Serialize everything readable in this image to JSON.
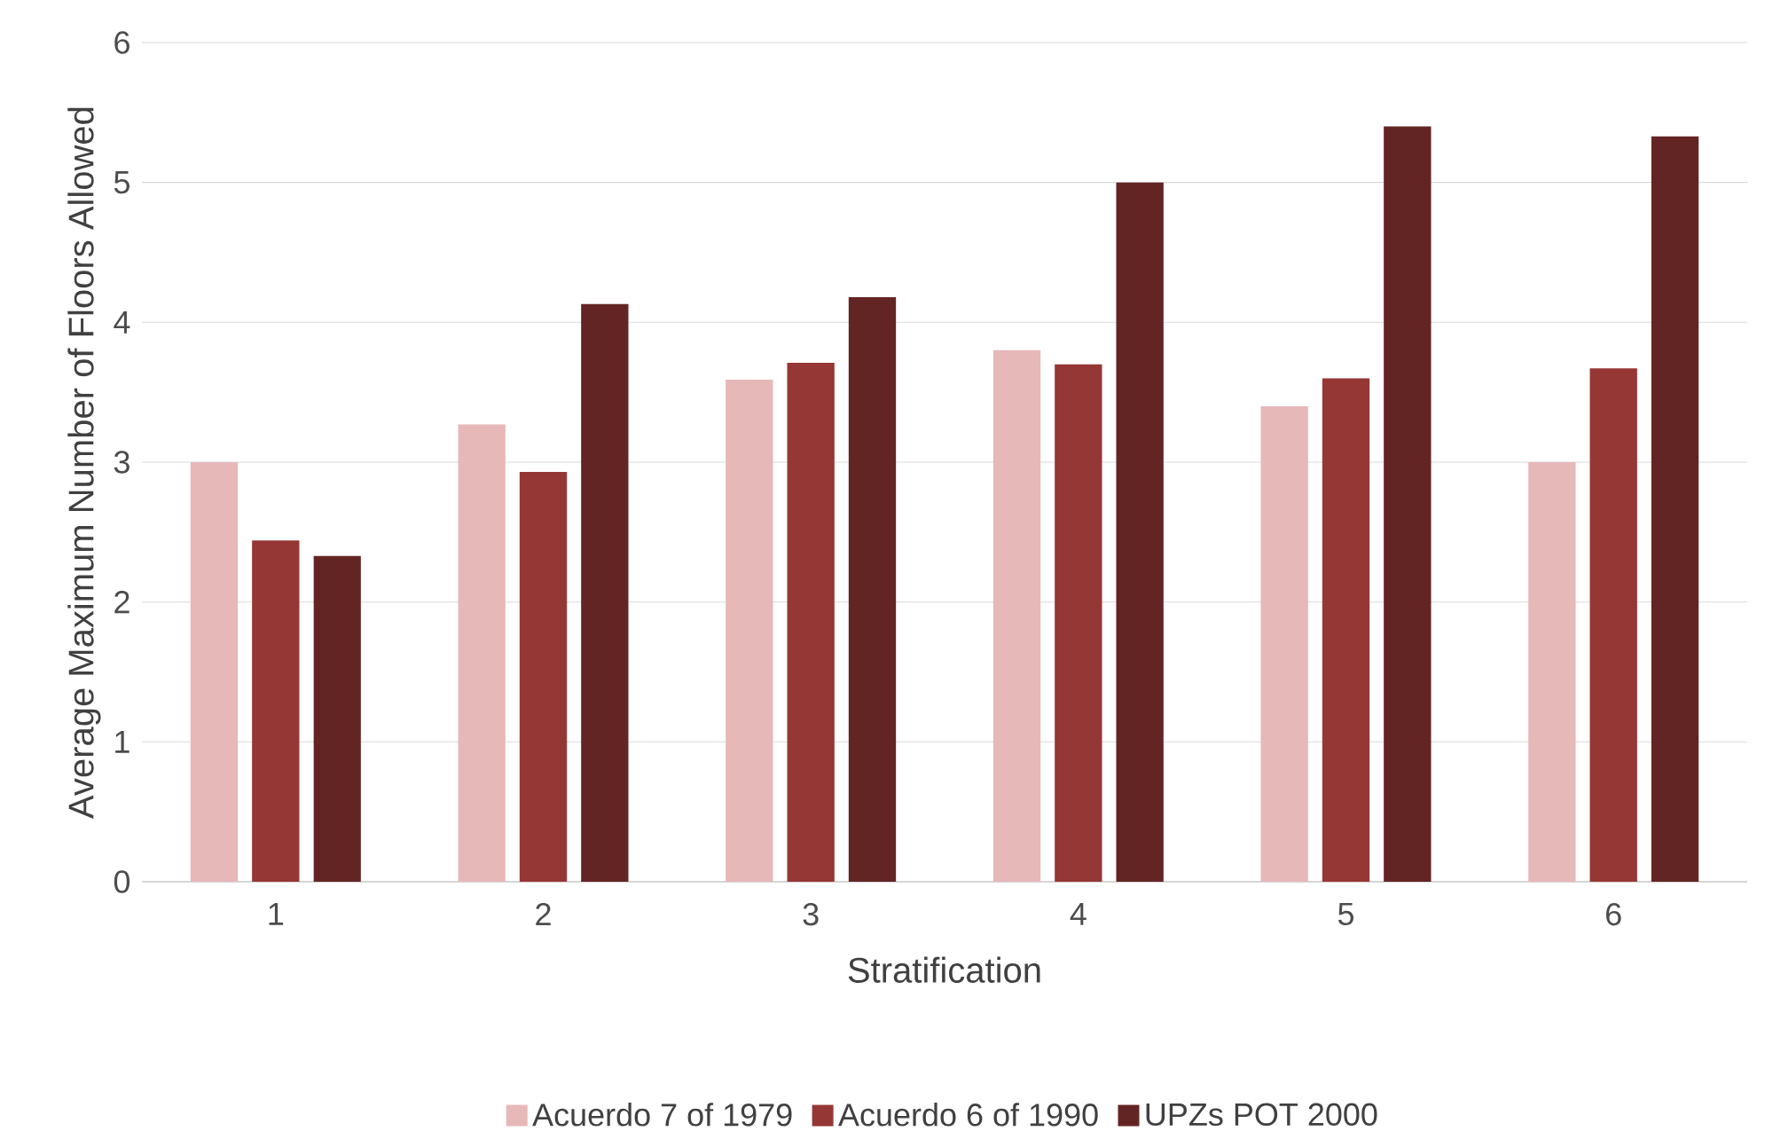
{
  "chart_data": {
    "type": "bar",
    "xlabel": "Stratification",
    "ylabel": "Average Maximum Number of Floors Allowed",
    "categories": [
      "1",
      "2",
      "3",
      "4",
      "5",
      "6"
    ],
    "series": [
      {
        "name": "Acuerdo 7 of 1979",
        "color": "#e6b8b7",
        "values": [
          3.0,
          3.27,
          3.59,
          3.8,
          3.4,
          3.0
        ]
      },
      {
        "name": "Acuerdo 6 of 1990",
        "color": "#953735",
        "values": [
          2.44,
          2.93,
          3.71,
          3.7,
          3.6,
          3.67
        ]
      },
      {
        "name": "UPZs POT 2000",
        "color": "#632523",
        "values": [
          2.33,
          4.13,
          4.18,
          5.0,
          5.4,
          5.33
        ]
      }
    ],
    "ylim": [
      0,
      6
    ],
    "yticks": [
      0,
      1,
      2,
      3,
      4,
      5,
      6
    ],
    "grid": "y",
    "legend": "bottom"
  }
}
